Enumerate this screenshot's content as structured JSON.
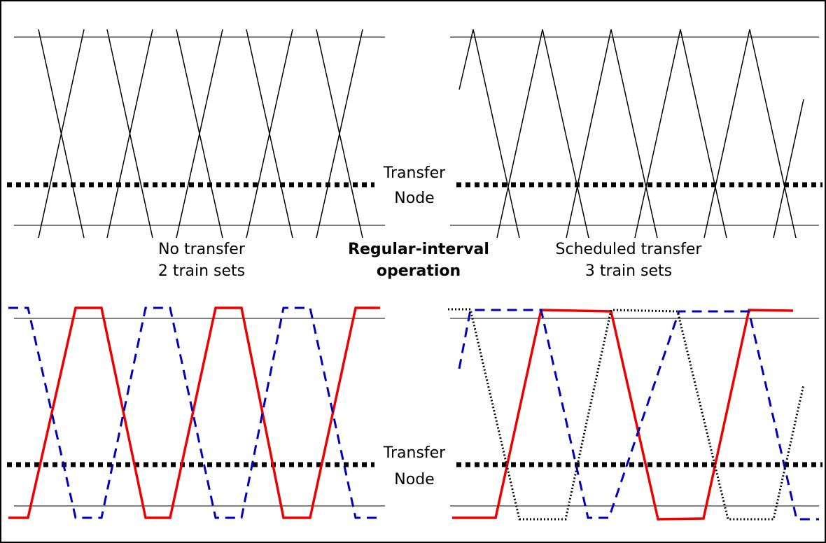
{
  "labels": {
    "top_node": [
      "Transfer",
      "Node"
    ],
    "bottom_node": [
      "Transfer",
      "Node"
    ],
    "left_caption": [
      "No transfer",
      "2 train sets"
    ],
    "center_caption": [
      "Regular-interval",
      "operation"
    ],
    "right_caption": [
      "Scheduled transfer",
      "3 train sets"
    ]
  }
}
